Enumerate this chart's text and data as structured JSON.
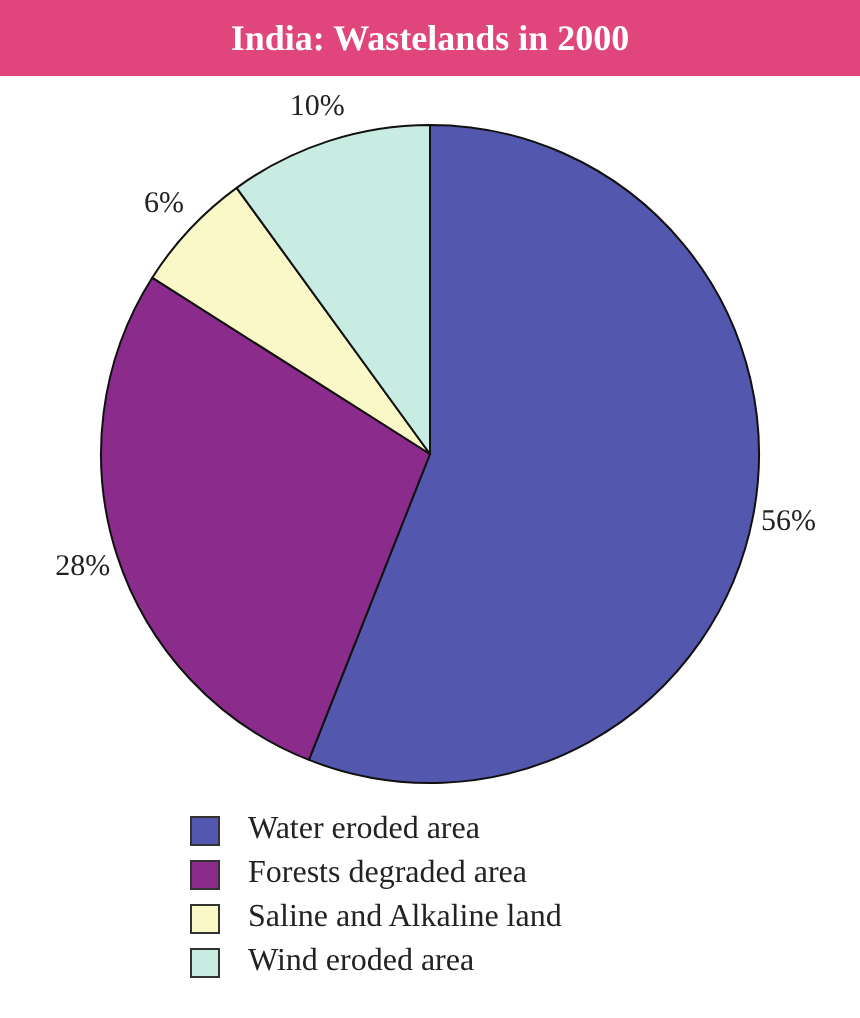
{
  "chart_data": {
    "type": "pie",
    "title": "India: Wastelands in 2000",
    "categories": [
      "Water eroded area",
      "Forests degraded area",
      "Saline and Alkaline land",
      "Wind eroded area"
    ],
    "values": [
      56,
      28,
      6,
      10
    ],
    "colors": [
      "#5457ae",
      "#8b2b8c",
      "#fbf8c8",
      "#c9ece2"
    ],
    "value_labels": [
      "56%",
      "28%",
      "6%",
      "10%"
    ],
    "legend": "bottom"
  }
}
